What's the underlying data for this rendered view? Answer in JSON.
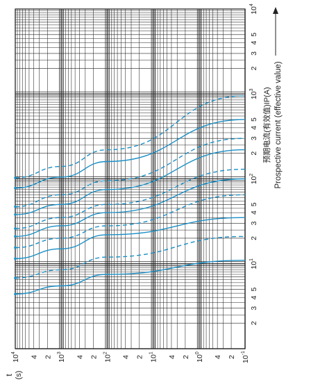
{
  "chart_data": {
    "type": "line",
    "orientation": "rotated-90-cw",
    "grid": true,
    "xscale": "log",
    "yscale": "log",
    "xlabel_cn": "预期电流(有效值)IP(A)",
    "xlabel_en": "Prospective current (effective value)",
    "ylabel_var": "t",
    "ylabel_unit": "(s)",
    "xlim": [
      1,
      10000
    ],
    "ylim": [
      0.1,
      10000
    ],
    "x_tick_labels": [
      {
        "v": 2,
        "t": "2"
      },
      {
        "v": 3,
        "t": "3"
      },
      {
        "v": 4,
        "t": "4"
      },
      {
        "v": 5,
        "t": "5"
      },
      {
        "v": 10,
        "t": "10",
        "sup": "1"
      },
      {
        "v": 20,
        "t": "2"
      },
      {
        "v": 30,
        "t": "3"
      },
      {
        "v": 40,
        "t": "4"
      },
      {
        "v": 50,
        "t": "5"
      },
      {
        "v": 100,
        "t": "10",
        "sup": "2"
      },
      {
        "v": 200,
        "t": "2"
      },
      {
        "v": 300,
        "t": "3"
      },
      {
        "v": 400,
        "t": "4"
      },
      {
        "v": 500,
        "t": "5"
      },
      {
        "v": 1000,
        "t": "10",
        "sup": "3"
      },
      {
        "v": 2000,
        "t": "2"
      },
      {
        "v": 3000,
        "t": "3"
      },
      {
        "v": 4000,
        "t": "4"
      },
      {
        "v": 5000,
        "t": "5"
      },
      {
        "v": 10000,
        "t": "10",
        "sup": "4"
      }
    ],
    "y_tick_labels": [
      {
        "v": 10000,
        "t": "10",
        "sup": "4"
      },
      {
        "v": 4000,
        "t": "4"
      },
      {
        "v": 2000,
        "t": "2"
      },
      {
        "v": 1000,
        "t": "10",
        "sup": "3"
      },
      {
        "v": 400,
        "t": "4"
      },
      {
        "v": 200,
        "t": "2"
      },
      {
        "v": 100,
        "t": "10",
        "sup": "2"
      },
      {
        "v": 40,
        "t": "4"
      },
      {
        "v": 20,
        "t": "2"
      },
      {
        "v": 10,
        "t": "10",
        "sup": "1"
      },
      {
        "v": 4,
        "t": "4"
      },
      {
        "v": 2,
        "t": "2"
      },
      {
        "v": 1,
        "t": "10",
        "sup": "0"
      },
      {
        "v": 0.4,
        "t": "4"
      },
      {
        "v": 0.2,
        "t": "2"
      },
      {
        "v": 0.1,
        "t": "10",
        "sup": "-1"
      }
    ],
    "series_color": "#1a8fc6",
    "series": [
      {
        "style": "solid",
        "x": [
          4.4,
          5.5,
          7.5,
          11
        ]
      },
      {
        "style": "dashed",
        "x": [
          6.8,
          8.5,
          12,
          21
        ]
      },
      {
        "style": "solid",
        "x": [
          11.5,
          15,
          22,
          35
        ]
      },
      {
        "style": "dashed",
        "x": [
          15.5,
          20,
          28,
          65
        ]
      },
      {
        "style": "solid",
        "x": [
          21,
          28,
          40,
          100
        ]
      },
      {
        "style": "dashed",
        "x": [
          26,
          35,
          50,
          130
        ]
      },
      {
        "style": "solid",
        "x": [
          38,
          50,
          75,
          220
        ]
      },
      {
        "style": "dashed",
        "x": [
          47,
          65,
          95,
          300
        ]
      },
      {
        "style": "solid",
        "x": [
          78,
          105,
          160,
          500
        ]
      },
      {
        "style": "dashed",
        "x": [
          103,
          140,
          220,
          950
        ]
      }
    ],
    "series_y": [
      10000,
      1000,
      100,
      0.1
    ]
  }
}
